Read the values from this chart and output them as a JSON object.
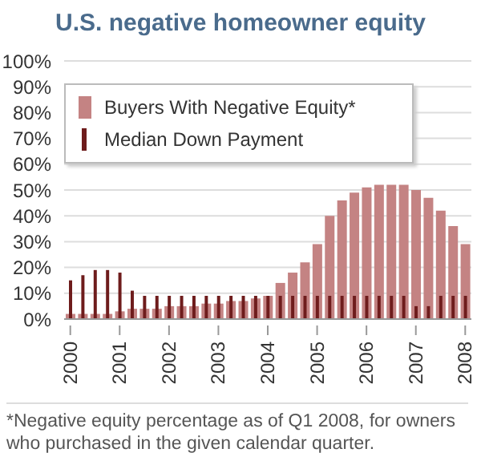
{
  "chart_data": {
    "type": "bar",
    "title": "U.S. negative homeowner equity",
    "categories": [
      "2000",
      null,
      null,
      null,
      "2001",
      null,
      null,
      null,
      "2002",
      null,
      null,
      null,
      "2003",
      null,
      null,
      null,
      "2004",
      null,
      null,
      null,
      "2005",
      null,
      null,
      null,
      "2006",
      null,
      null,
      null,
      "2007",
      null,
      null,
      null,
      "2008"
    ],
    "series": [
      {
        "name": "Buyers With Negative Equity*",
        "color": "#c48383",
        "values": [
          2,
          2,
          2,
          2,
          3,
          4,
          4,
          4,
          5,
          5,
          5,
          6,
          6,
          7,
          7,
          8,
          9,
          14,
          18,
          22,
          29,
          40,
          46,
          49,
          51,
          52,
          52,
          52,
          50,
          47,
          42,
          36,
          29
        ]
      },
      {
        "name": "Median Down Payment",
        "color": "#6e1c1c",
        "values": [
          15,
          17,
          19,
          19,
          18,
          11,
          9,
          9,
          9,
          9,
          9,
          9,
          9,
          9,
          9,
          9,
          9,
          9,
          9,
          9,
          9,
          9,
          9,
          9,
          9,
          9,
          9,
          9,
          5,
          5,
          9,
          9,
          9
        ]
      }
    ],
    "ylim": [
      0,
      100
    ],
    "yticks": [
      {
        "value": 0,
        "label": "0%"
      },
      {
        "value": 10,
        "label": "10%"
      },
      {
        "value": 20,
        "label": "20%"
      },
      {
        "value": 30,
        "label": "30%"
      },
      {
        "value": 40,
        "label": "40%"
      },
      {
        "value": 50,
        "label": "50%"
      },
      {
        "value": 60,
        "label": "60%"
      },
      {
        "value": 70,
        "label": "70%"
      },
      {
        "value": 80,
        "label": "80%"
      },
      {
        "value": 90,
        "label": "90%"
      },
      {
        "value": 100,
        "label": "100%"
      }
    ],
    "grid": "y",
    "legend": "top",
    "annotations": [
      "*Negative equity percentage as of Q1 2008, for owners who purchased in the given calendar quarter."
    ]
  }
}
